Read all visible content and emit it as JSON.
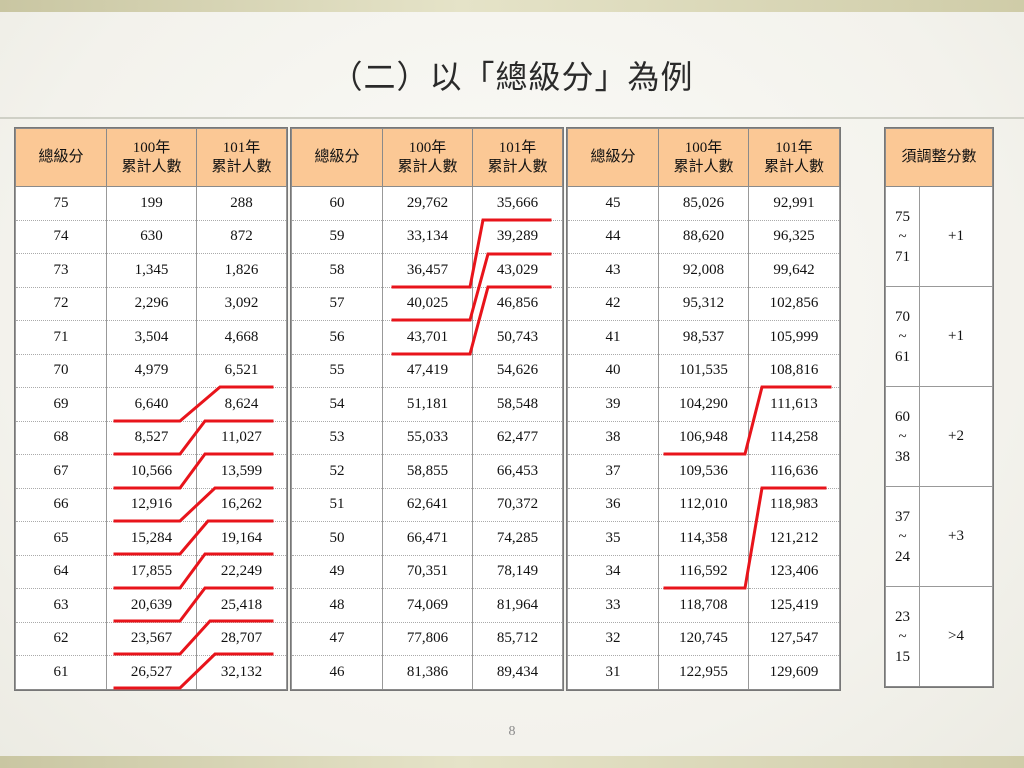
{
  "title": "（二）以「總級分」為例",
  "page_number": "8",
  "headers": {
    "score": "總級分",
    "y100_line1": "100年",
    "y100_line2": "累計人數",
    "y101_line1": "101年",
    "y101_line2": "累計人數",
    "adjust": "須調整分數"
  },
  "tables": [
    {
      "rows": [
        [
          "75",
          "199",
          "288"
        ],
        [
          "74",
          "630",
          "872"
        ],
        [
          "73",
          "1,345",
          "1,826"
        ],
        [
          "72",
          "2,296",
          "3,092"
        ],
        [
          "71",
          "3,504",
          "4,668"
        ],
        [
          "70",
          "4,979",
          "6,521"
        ],
        [
          "69",
          "6,640",
          "8,624"
        ],
        [
          "68",
          "8,527",
          "11,027"
        ],
        [
          "67",
          "10,566",
          "13,599"
        ],
        [
          "66",
          "12,916",
          "16,262"
        ],
        [
          "65",
          "15,284",
          "19,164"
        ],
        [
          "64",
          "17,855",
          "22,249"
        ],
        [
          "63",
          "20,639",
          "25,418"
        ],
        [
          "62",
          "23,567",
          "28,707"
        ],
        [
          "61",
          "26,527",
          "32,132"
        ]
      ]
    },
    {
      "rows": [
        [
          "60",
          "29,762",
          "35,666"
        ],
        [
          "59",
          "33,134",
          "39,289"
        ],
        [
          "58",
          "36,457",
          "43,029"
        ],
        [
          "57",
          "40,025",
          "46,856"
        ],
        [
          "56",
          "43,701",
          "50,743"
        ],
        [
          "55",
          "47,419",
          "54,626"
        ],
        [
          "54",
          "51,181",
          "58,548"
        ],
        [
          "53",
          "55,033",
          "62,477"
        ],
        [
          "52",
          "58,855",
          "66,453"
        ],
        [
          "51",
          "62,641",
          "70,372"
        ],
        [
          "50",
          "66,471",
          "74,285"
        ],
        [
          "49",
          "70,351",
          "78,149"
        ],
        [
          "48",
          "74,069",
          "81,964"
        ],
        [
          "47",
          "77,806",
          "85,712"
        ],
        [
          "46",
          "81,386",
          "89,434"
        ]
      ]
    },
    {
      "rows": [
        [
          "45",
          "85,026",
          "92,991"
        ],
        [
          "44",
          "88,620",
          "96,325"
        ],
        [
          "43",
          "92,008",
          "99,642"
        ],
        [
          "42",
          "95,312",
          "102,856"
        ],
        [
          "41",
          "98,537",
          "105,999"
        ],
        [
          "40",
          "101,535",
          "108,816"
        ],
        [
          "39",
          "104,290",
          "111,613"
        ],
        [
          "38",
          "106,948",
          "114,258"
        ],
        [
          "37",
          "109,536",
          "116,636"
        ],
        [
          "36",
          "112,010",
          "118,983"
        ],
        [
          "35",
          "114,358",
          "121,212"
        ],
        [
          "34",
          "116,592",
          "123,406"
        ],
        [
          "33",
          "118,708",
          "125,419"
        ],
        [
          "32",
          "120,745",
          "127,547"
        ],
        [
          "31",
          "122,955",
          "129,609"
        ]
      ]
    }
  ],
  "adjustments": [
    {
      "range_top": "75",
      "tilde": "~",
      "range_bottom": "71",
      "value": "+1"
    },
    {
      "range_top": "70",
      "tilde": "~",
      "range_bottom": "61",
      "value": "+1"
    },
    {
      "range_top": "60",
      "tilde": "~",
      "range_bottom": "38",
      "value": "+2"
    },
    {
      "range_top": "37",
      "tilde": "~",
      "range_bottom": "24",
      "value": "+3"
    },
    {
      "range_top": "23",
      "tilde": "~",
      "range_bottom": "15",
      "value": ">4"
    }
  ],
  "colors": {
    "header_fill": "#fbc895",
    "marker_red": "#e8141b"
  }
}
